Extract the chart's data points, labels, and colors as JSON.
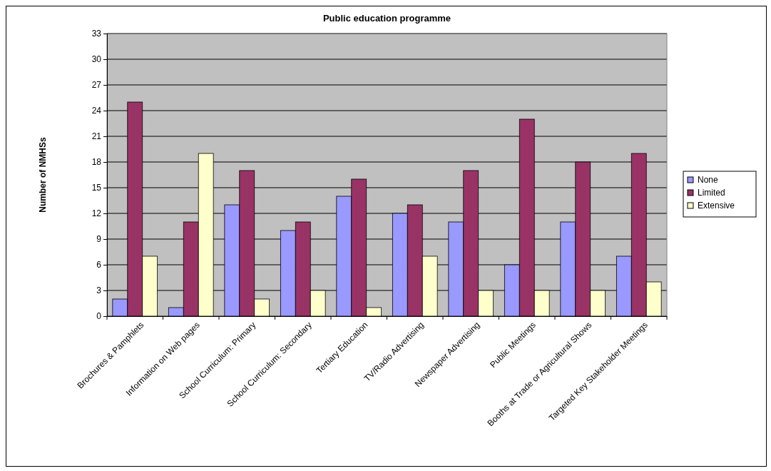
{
  "chart_data": {
    "type": "bar",
    "title": "Public education programme",
    "ylabel": "Number of NMHSs",
    "categories": [
      "Brochures & Pamphlets",
      "Information on Web pages",
      "School Curriculum: Primary",
      "School Curriculum: Secondary",
      "Tertiary Education",
      "TV/Radio Advertising",
      "Newspaper Advertising",
      "Public Meetings",
      "Booths at Trade or Agricultural Shows",
      "Targeted Key Stakeholder Meetings"
    ],
    "series": [
      {
        "name": "None",
        "color": "#9999ff",
        "values": [
          2,
          1,
          13,
          10,
          14,
          12,
          11,
          6,
          11,
          7
        ]
      },
      {
        "name": "Limited",
        "color": "#993366",
        "values": [
          25,
          11,
          17,
          11,
          16,
          13,
          17,
          23,
          18,
          19
        ]
      },
      {
        "name": "Extensive",
        "color": "#ffffcc",
        "values": [
          7,
          19,
          2,
          3,
          1,
          7,
          3,
          3,
          3,
          4
        ]
      }
    ],
    "ylim": [
      0,
      33
    ],
    "yticks": [
      0,
      3,
      6,
      9,
      12,
      15,
      18,
      21,
      24,
      27,
      30,
      33
    ],
    "grid": "y",
    "legend": "right"
  }
}
